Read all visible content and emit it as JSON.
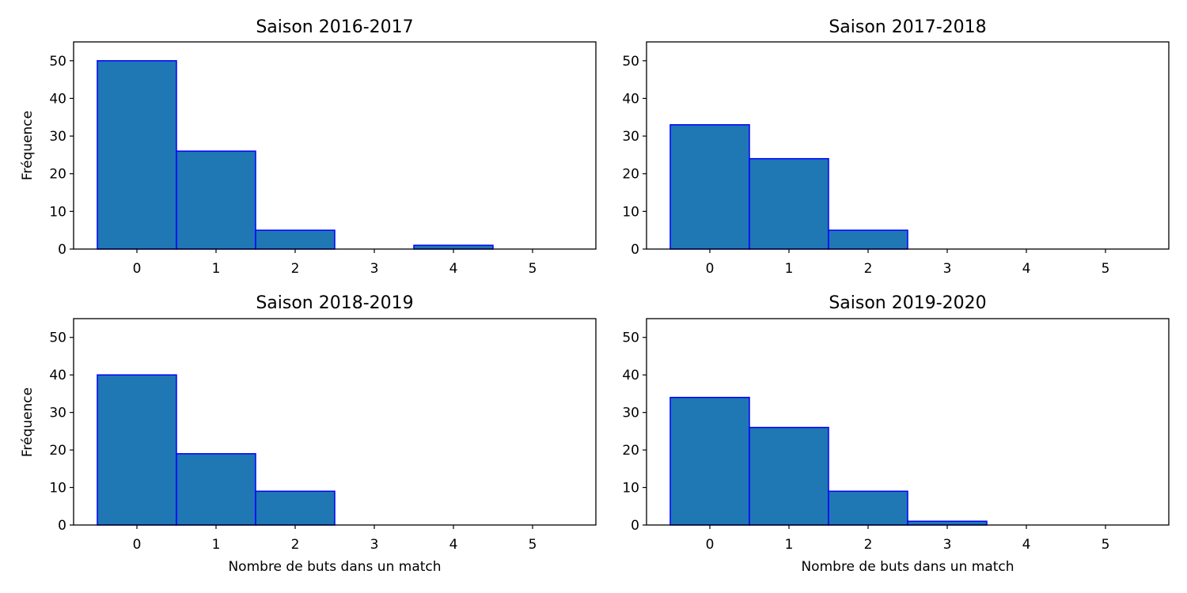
{
  "colors": {
    "bar_fill": "#1f77b4",
    "bar_edge": "#0000ff",
    "axes": "#000000",
    "background": "#ffffff"
  },
  "chart_data": [
    {
      "type": "bar",
      "title": "Saison 2016-2017",
      "xlabel": "",
      "ylabel": "Fréquence",
      "categories": [
        "0",
        "1",
        "2",
        "3",
        "4",
        "5"
      ],
      "values": [
        50,
        26,
        5,
        0,
        1,
        0
      ],
      "xlim": [
        -0.8,
        5.8
      ],
      "ylim": [
        0,
        55
      ],
      "xticks": [
        "0",
        "1",
        "2",
        "3",
        "4",
        "5"
      ],
      "yticks": [
        "0",
        "10",
        "20",
        "30",
        "40",
        "50"
      ],
      "grid": false
    },
    {
      "type": "bar",
      "title": "Saison 2017-2018",
      "xlabel": "",
      "ylabel": "",
      "categories": [
        "0",
        "1",
        "2",
        "3",
        "4",
        "5"
      ],
      "values": [
        33,
        24,
        5,
        0,
        0,
        0
      ],
      "xlim": [
        -0.8,
        5.8
      ],
      "ylim": [
        0,
        55
      ],
      "xticks": [
        "0",
        "1",
        "2",
        "3",
        "4",
        "5"
      ],
      "yticks": [
        "0",
        "10",
        "20",
        "30",
        "40",
        "50"
      ],
      "grid": false
    },
    {
      "type": "bar",
      "title": "Saison 2018-2019",
      "xlabel": "Nombre de buts dans un match",
      "ylabel": "Fréquence",
      "categories": [
        "0",
        "1",
        "2",
        "3",
        "4",
        "5"
      ],
      "values": [
        40,
        19,
        9,
        0,
        0,
        0
      ],
      "xlim": [
        -0.8,
        5.8
      ],
      "ylim": [
        0,
        55
      ],
      "xticks": [
        "0",
        "1",
        "2",
        "3",
        "4",
        "5"
      ],
      "yticks": [
        "0",
        "10",
        "20",
        "30",
        "40",
        "50"
      ],
      "grid": false
    },
    {
      "type": "bar",
      "title": "Saison 2019-2020",
      "xlabel": "Nombre de buts dans un match",
      "ylabel": "",
      "categories": [
        "0",
        "1",
        "2",
        "3",
        "4",
        "5"
      ],
      "values": [
        34,
        26,
        9,
        1,
        0,
        0
      ],
      "xlim": [
        -0.8,
        5.8
      ],
      "ylim": [
        0,
        55
      ],
      "xticks": [
        "0",
        "1",
        "2",
        "3",
        "4",
        "5"
      ],
      "yticks": [
        "0",
        "10",
        "20",
        "30",
        "40",
        "50"
      ],
      "grid": false
    }
  ]
}
